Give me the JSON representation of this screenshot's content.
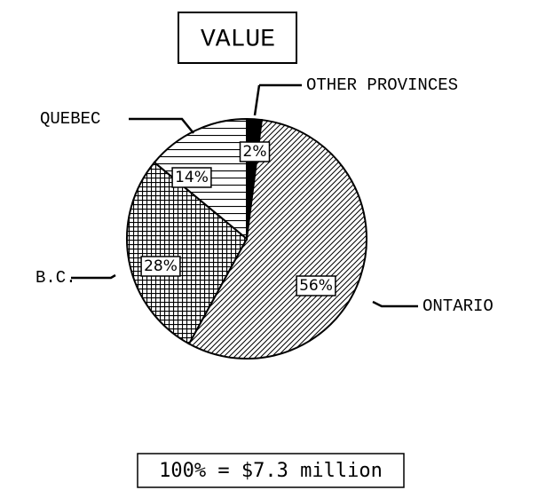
{
  "chart_data": {
    "type": "pie",
    "title": "VALUE",
    "footnote": "100% = $7.3 million",
    "categories": [
      "OTHER PROVINCES",
      "ONTARIO",
      "B.C.",
      "QUEBEC"
    ],
    "values": [
      2,
      56,
      28,
      14
    ],
    "value_labels": [
      "2%",
      "56%",
      "28%",
      "14%"
    ]
  }
}
